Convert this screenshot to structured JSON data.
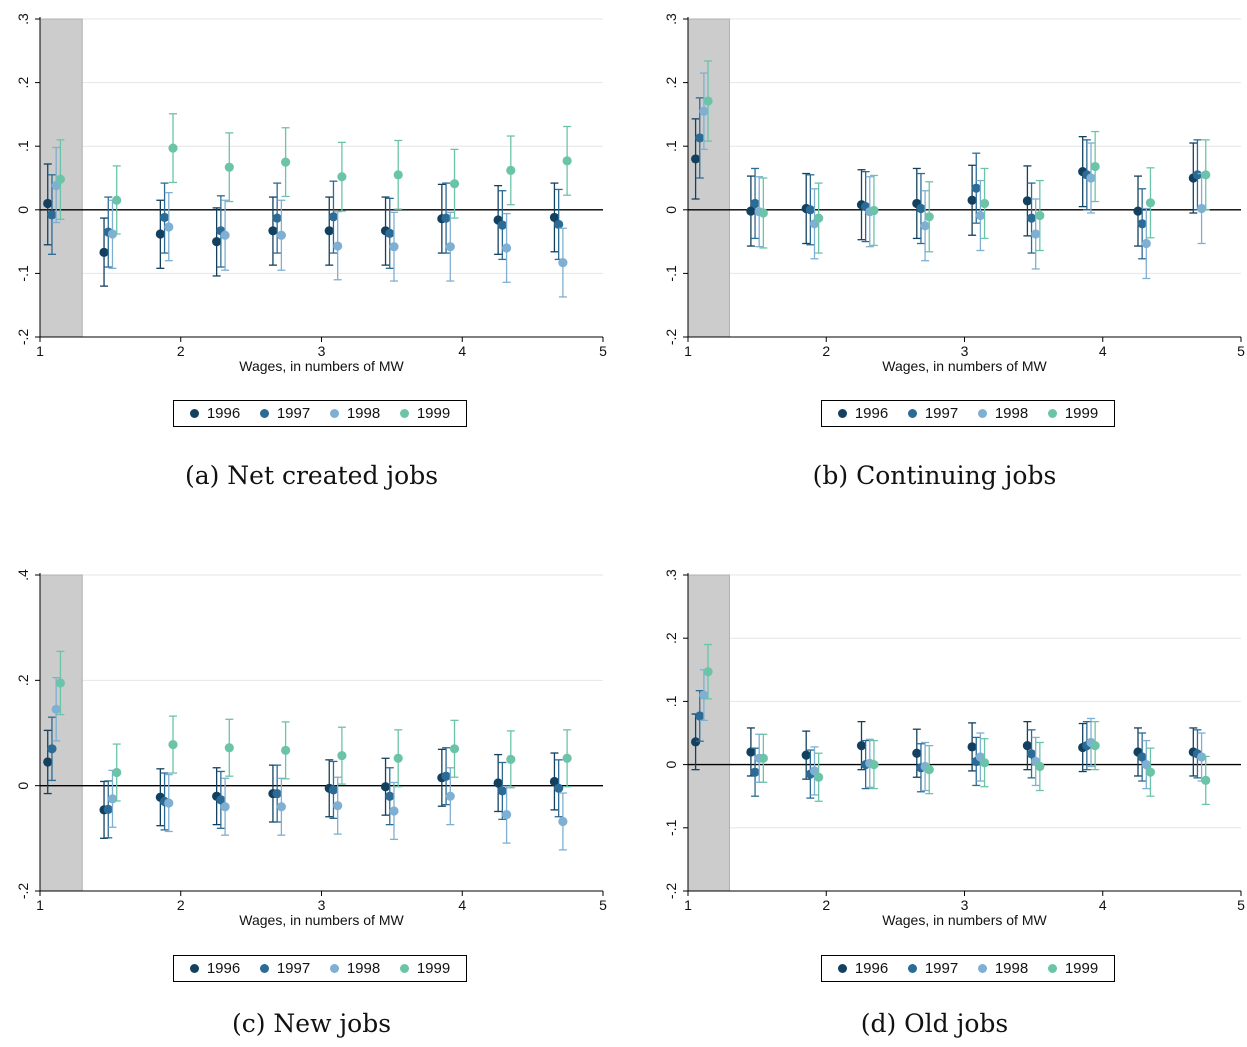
{
  "figure": {
    "series_colors": {
      "1996": "#13405e",
      "1997": "#2b6b95",
      "1998": "#7fafd3",
      "1999": "#6cc4a8"
    },
    "shade_color": "#cccccc"
  },
  "chart_data": [
    {
      "type": "scatter",
      "caption": "(a)  Net created jobs",
      "xlabel": "Wages, in numbers of MW",
      "ylabel": "",
      "xlim": [
        1,
        5
      ],
      "ylim": [
        -0.2,
        0.3
      ],
      "xticks": [
        1,
        2,
        3,
        4,
        5
      ],
      "xtick_labels": [
        "1",
        "2",
        "3",
        "4",
        "5"
      ],
      "yticks": [
        -0.2,
        -0.1,
        0,
        0.1,
        0.2,
        0.3
      ],
      "ytick_labels": [
        "-.2",
        "-.1",
        "0",
        ".1",
        ".2",
        ".3"
      ],
      "shaded_region": [
        1,
        1.3
      ],
      "grid": true,
      "legend": [
        "1996",
        "1997",
        "1998",
        "1999"
      ],
      "legend_position": "bottom",
      "x_positions": [
        1.1,
        1.5,
        1.9,
        2.3,
        2.7,
        3.1,
        3.5,
        3.9,
        4.3,
        4.7
      ],
      "series": [
        {
          "name": "1996",
          "y": [
            0.01,
            -0.067,
            -0.038,
            -0.05,
            -0.033,
            -0.033,
            -0.033,
            -0.014,
            -0.016,
            -0.012
          ],
          "lo": [
            -0.055,
            -0.12,
            -0.092,
            -0.104,
            -0.087,
            -0.087,
            -0.087,
            -0.068,
            -0.07,
            -0.066
          ],
          "hi": [
            0.072,
            -0.013,
            0.015,
            0.003,
            0.02,
            0.02,
            0.02,
            0.04,
            0.038,
            0.042
          ]
        },
        {
          "name": "1997",
          "y": [
            -0.008,
            -0.035,
            -0.012,
            -0.033,
            -0.013,
            -0.011,
            -0.037,
            -0.013,
            -0.024,
            -0.023
          ],
          "lo": [
            -0.07,
            -0.09,
            -0.068,
            -0.09,
            -0.068,
            -0.068,
            -0.092,
            -0.068,
            -0.078,
            -0.078
          ],
          "hi": [
            0.055,
            0.02,
            0.042,
            0.022,
            0.042,
            0.045,
            0.018,
            0.042,
            0.03,
            0.032
          ]
        },
        {
          "name": "1998",
          "y": [
            0.038,
            -0.038,
            -0.027,
            -0.04,
            -0.04,
            -0.057,
            -0.058,
            -0.058,
            -0.06,
            -0.083
          ],
          "lo": [
            -0.02,
            -0.092,
            -0.08,
            -0.095,
            -0.095,
            -0.11,
            -0.112,
            -0.112,
            -0.114,
            -0.137
          ],
          "hi": [
            0.098,
            0.015,
            0.027,
            0.015,
            0.015,
            -0.003,
            -0.004,
            -0.004,
            -0.006,
            -0.029
          ]
        },
        {
          "name": "1999",
          "y": [
            0.048,
            0.015,
            0.097,
            0.067,
            0.075,
            0.052,
            0.055,
            0.041,
            0.062,
            0.077
          ],
          "lo": [
            -0.015,
            -0.038,
            0.043,
            0.013,
            0.021,
            -0.002,
            0.001,
            -0.013,
            0.008,
            0.023
          ],
          "hi": [
            0.11,
            0.069,
            0.151,
            0.121,
            0.129,
            0.106,
            0.109,
            0.095,
            0.116,
            0.131
          ]
        }
      ]
    },
    {
      "type": "scatter",
      "caption": "(b)  Continuing jobs",
      "xlabel": "Wages, in numbers of MW",
      "ylabel": "",
      "xlim": [
        1,
        5
      ],
      "ylim": [
        -0.2,
        0.3
      ],
      "xticks": [
        1,
        2,
        3,
        4,
        5
      ],
      "xtick_labels": [
        "1",
        "2",
        "3",
        "4",
        "5"
      ],
      "yticks": [
        -0.2,
        -0.1,
        0,
        0.1,
        0.2,
        0.3
      ],
      "ytick_labels": [
        "-.2",
        "-.1",
        "0",
        ".1",
        ".2",
        ".3"
      ],
      "shaded_region": [
        1,
        1.3
      ],
      "grid": true,
      "legend": [
        "1996",
        "1997",
        "1998",
        "1999"
      ],
      "legend_position": "bottom",
      "x_positions": [
        1.1,
        1.5,
        1.9,
        2.3,
        2.7,
        3.1,
        3.5,
        3.9,
        4.3,
        4.7
      ],
      "series": [
        {
          "name": "1996",
          "y": [
            0.08,
            -0.002,
            0.002,
            0.008,
            0.01,
            0.015,
            0.014,
            0.06,
            -0.002,
            0.05
          ],
          "lo": [
            0.017,
            -0.057,
            -0.053,
            -0.047,
            -0.045,
            -0.04,
            -0.041,
            0.005,
            -0.057,
            -0.005
          ],
          "hi": [
            0.143,
            0.053,
            0.057,
            0.063,
            0.065,
            0.07,
            0.069,
            0.115,
            0.053,
            0.105
          ]
        },
        {
          "name": "1997",
          "y": [
            0.113,
            0.01,
            0.0,
            0.005,
            0.002,
            0.034,
            -0.013,
            0.055,
            -0.022,
            0.055
          ],
          "lo": [
            0.05,
            -0.045,
            -0.055,
            -0.05,
            -0.053,
            -0.021,
            -0.068,
            0.0,
            -0.077,
            0.0
          ],
          "hi": [
            0.176,
            0.065,
            0.055,
            0.06,
            0.057,
            0.089,
            0.042,
            0.11,
            0.033,
            0.11
          ]
        },
        {
          "name": "1998",
          "y": [
            0.155,
            -0.003,
            -0.022,
            -0.003,
            -0.025,
            -0.009,
            -0.038,
            0.05,
            -0.053,
            0.002
          ],
          "lo": [
            0.095,
            -0.058,
            -0.077,
            -0.058,
            -0.08,
            -0.064,
            -0.093,
            -0.005,
            -0.108,
            -0.053
          ],
          "hi": [
            0.215,
            0.052,
            0.033,
            0.052,
            0.03,
            0.046,
            0.017,
            0.105,
            0.002,
            0.057
          ]
        },
        {
          "name": "1999",
          "y": [
            0.171,
            -0.005,
            -0.013,
            -0.001,
            -0.011,
            0.01,
            -0.009,
            0.068,
            0.011,
            0.055
          ],
          "lo": [
            0.108,
            -0.06,
            -0.068,
            -0.056,
            -0.066,
            -0.045,
            -0.064,
            0.013,
            -0.044,
            0.0
          ],
          "hi": [
            0.234,
            0.05,
            0.042,
            0.054,
            0.044,
            0.065,
            0.046,
            0.123,
            0.066,
            0.11
          ]
        }
      ]
    },
    {
      "type": "scatter",
      "caption": "(c)  New jobs",
      "xlabel": "Wages, in numbers of MW",
      "ylabel": "",
      "xlim": [
        1,
        5
      ],
      "ylim": [
        -0.2,
        0.4
      ],
      "xticks": [
        1,
        2,
        3,
        4,
        5
      ],
      "xtick_labels": [
        "1",
        "2",
        "3",
        "4",
        "5"
      ],
      "yticks": [
        -0.2,
        0,
        0.2,
        0.4
      ],
      "ytick_labels": [
        "-.2",
        "0",
        ".2",
        ".4"
      ],
      "shaded_region": [
        1,
        1.3
      ],
      "grid": true,
      "legend": [
        "1996",
        "1997",
        "1998",
        "1999"
      ],
      "legend_position": "bottom",
      "x_positions": [
        1.1,
        1.5,
        1.9,
        2.3,
        2.7,
        3.1,
        3.5,
        3.9,
        4.3,
        4.7
      ],
      "series": [
        {
          "name": "1996",
          "y": [
            0.045,
            -0.046,
            -0.022,
            -0.02,
            -0.015,
            -0.005,
            -0.002,
            0.015,
            0.005,
            0.008
          ],
          "lo": [
            -0.015,
            -0.1,
            -0.076,
            -0.074,
            -0.069,
            -0.059,
            -0.056,
            -0.039,
            -0.049,
            -0.046
          ],
          "hi": [
            0.105,
            0.008,
            0.032,
            0.034,
            0.039,
            0.049,
            0.052,
            0.069,
            0.059,
            0.062
          ]
        },
        {
          "name": "1997",
          "y": [
            0.07,
            -0.045,
            -0.03,
            -0.027,
            -0.015,
            -0.008,
            -0.02,
            0.018,
            -0.01,
            -0.005
          ],
          "lo": [
            0.01,
            -0.099,
            -0.084,
            -0.081,
            -0.069,
            -0.062,
            -0.074,
            -0.036,
            -0.064,
            -0.059
          ],
          "hi": [
            0.13,
            0.009,
            0.024,
            0.027,
            0.039,
            0.046,
            0.034,
            0.072,
            0.044,
            0.049
          ]
        },
        {
          "name": "1998",
          "y": [
            0.145,
            -0.025,
            -0.033,
            -0.04,
            -0.04,
            -0.038,
            -0.048,
            -0.02,
            -0.055,
            -0.068
          ],
          "lo": [
            0.085,
            -0.079,
            -0.087,
            -0.094,
            -0.094,
            -0.092,
            -0.102,
            -0.074,
            -0.109,
            -0.122
          ],
          "hi": [
            0.205,
            0.029,
            0.021,
            0.014,
            0.014,
            0.016,
            0.006,
            0.034,
            -0.001,
            -0.014
          ]
        },
        {
          "name": "1999",
          "y": [
            0.195,
            0.025,
            0.078,
            0.072,
            0.067,
            0.057,
            0.052,
            0.07,
            0.05,
            0.052
          ],
          "lo": [
            0.135,
            -0.029,
            0.024,
            0.018,
            0.013,
            0.003,
            -0.002,
            0.016,
            -0.004,
            -0.002
          ],
          "hi": [
            0.255,
            0.079,
            0.132,
            0.126,
            0.121,
            0.111,
            0.106,
            0.124,
            0.104,
            0.106
          ]
        }
      ]
    },
    {
      "type": "scatter",
      "caption": "(d)  Old jobs",
      "xlabel": "Wages, in numbers of MW",
      "ylabel": "",
      "xlim": [
        1,
        5
      ],
      "ylim": [
        -0.2,
        0.3
      ],
      "xticks": [
        1,
        2,
        3,
        4,
        5
      ],
      "xtick_labels": [
        "1",
        "2",
        "3",
        "4",
        "5"
      ],
      "yticks": [
        -0.2,
        -0.1,
        0,
        0.1,
        0.2,
        0.3
      ],
      "ytick_labels": [
        "-.2",
        "-.1",
        "0",
        ".1",
        ".2",
        ".3"
      ],
      "shaded_region": [
        1,
        1.3
      ],
      "grid": true,
      "legend": [
        "1996",
        "1997",
        "1998",
        "1999"
      ],
      "legend_position": "bottom",
      "x_positions": [
        1.1,
        1.5,
        1.9,
        2.3,
        2.7,
        3.1,
        3.5,
        3.9,
        4.3,
        4.7
      ],
      "series": [
        {
          "name": "1996",
          "y": [
            0.036,
            0.02,
            0.015,
            0.03,
            0.018,
            0.028,
            0.03,
            0.027,
            0.02,
            0.02
          ],
          "lo": [
            -0.008,
            -0.018,
            -0.023,
            -0.008,
            -0.02,
            -0.01,
            -0.008,
            -0.011,
            -0.018,
            -0.018
          ],
          "hi": [
            0.08,
            0.058,
            0.053,
            0.068,
            0.056,
            0.066,
            0.068,
            0.065,
            0.058,
            0.058
          ]
        },
        {
          "name": "1997",
          "y": [
            0.077,
            -0.012,
            -0.015,
            0.0,
            -0.005,
            0.005,
            0.017,
            0.03,
            0.012,
            0.017
          ],
          "lo": [
            0.037,
            -0.05,
            -0.053,
            -0.038,
            -0.043,
            -0.033,
            -0.021,
            -0.008,
            -0.026,
            -0.021
          ],
          "hi": [
            0.117,
            0.026,
            0.023,
            0.038,
            0.033,
            0.043,
            0.055,
            0.068,
            0.05,
            0.055
          ]
        },
        {
          "name": "1998",
          "y": [
            0.11,
            0.01,
            -0.01,
            0.002,
            -0.003,
            0.012,
            0.005,
            0.035,
            0.0,
            0.012
          ],
          "lo": [
            0.07,
            -0.028,
            -0.048,
            -0.036,
            -0.041,
            -0.026,
            -0.033,
            -0.003,
            -0.038,
            -0.026
          ],
          "hi": [
            0.15,
            0.048,
            0.028,
            0.04,
            0.035,
            0.05,
            0.043,
            0.073,
            0.038,
            0.05
          ]
        },
        {
          "name": "1999",
          "y": [
            0.147,
            0.01,
            -0.02,
            0.0,
            -0.008,
            0.003,
            -0.003,
            0.03,
            -0.012,
            -0.025
          ],
          "lo": [
            0.104,
            -0.028,
            -0.058,
            -0.038,
            -0.046,
            -0.035,
            -0.041,
            -0.008,
            -0.05,
            -0.063
          ],
          "hi": [
            0.19,
            0.048,
            0.018,
            0.038,
            0.03,
            0.041,
            0.035,
            0.068,
            0.026,
            0.013
          ]
        }
      ]
    }
  ]
}
